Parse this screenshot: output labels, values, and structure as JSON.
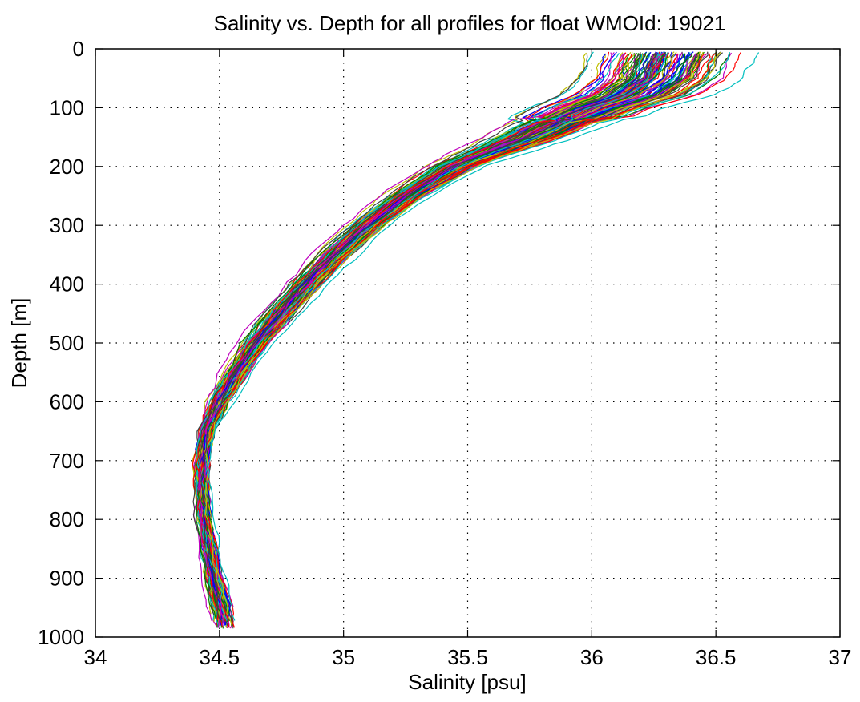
{
  "chart_data": {
    "type": "line",
    "title": "Salinity vs. Depth for all profiles for float WMOId: 19021",
    "xlabel": "Salinity [psu]",
    "ylabel": "Depth [m]",
    "xlim": [
      34,
      37
    ],
    "ylim": [
      0,
      1000
    ],
    "y_inverted": true,
    "grid": true,
    "grid_style": "dotted",
    "x_ticks": [
      34,
      34.5,
      35,
      35.5,
      36,
      36.5,
      37
    ],
    "x_tick_labels": [
      "34",
      "34.5",
      "35",
      "35.5",
      "36",
      "36.5",
      "37"
    ],
    "y_ticks": [
      0,
      100,
      200,
      300,
      400,
      500,
      600,
      700,
      800,
      900,
      1000
    ],
    "y_tick_labels": [
      "0",
      "100",
      "200",
      "300",
      "400",
      "500",
      "600",
      "700",
      "800",
      "900",
      "1000"
    ],
    "series_colors": [
      "#0000ff",
      "#008000",
      "#ff0000",
      "#00bfbf",
      "#bf00bf",
      "#bfbf00",
      "#404040"
    ],
    "profile_count": 140,
    "mean_profile": {
      "depth": [
        5,
        50,
        80,
        100,
        130,
        150,
        175,
        200,
        250,
        300,
        350,
        400,
        450,
        500,
        550,
        600,
        650,
        700,
        750,
        800,
        850,
        900,
        950,
        990
      ],
      "salinity": [
        36.3,
        36.25,
        36.15,
        36.0,
        35.85,
        35.75,
        35.6,
        35.45,
        35.25,
        35.1,
        34.97,
        34.85,
        34.75,
        34.65,
        34.57,
        34.5,
        34.45,
        34.43,
        34.43,
        34.44,
        34.46,
        34.48,
        34.51,
        34.52
      ]
    },
    "spread_profile": {
      "depth": [
        5,
        50,
        80,
        100,
        130,
        150,
        175,
        200,
        250,
        300,
        350,
        400,
        450,
        500,
        550,
        600,
        650,
        700,
        750,
        800,
        850,
        900,
        950,
        990
      ],
      "salinity_halfwidth": [
        0.4,
        0.38,
        0.35,
        0.3,
        0.28,
        0.26,
        0.2,
        0.16,
        0.13,
        0.12,
        0.12,
        0.11,
        0.1,
        0.09,
        0.08,
        0.07,
        0.05,
        0.04,
        0.04,
        0.04,
        0.05,
        0.05,
        0.06,
        0.06
      ]
    }
  }
}
